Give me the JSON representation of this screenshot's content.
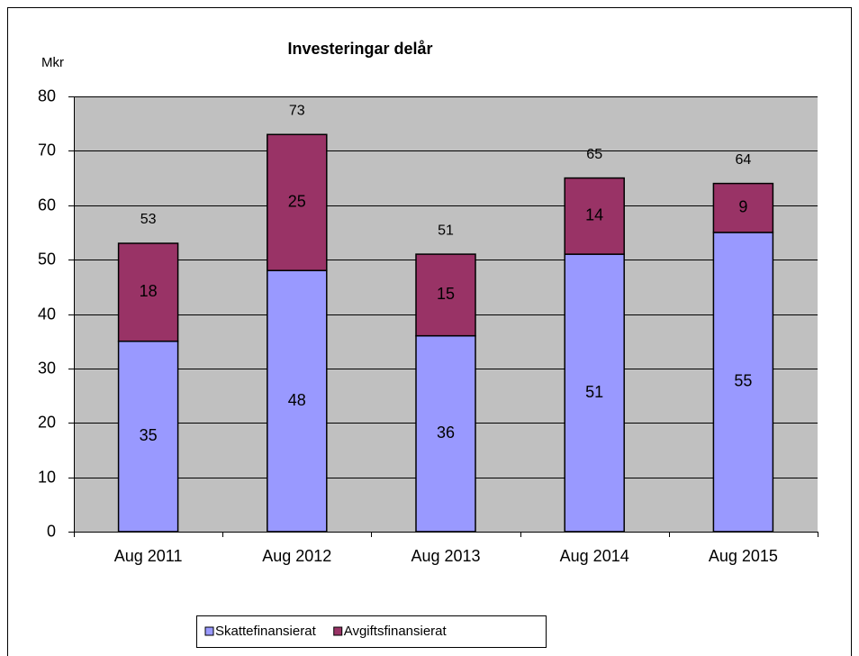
{
  "chart_data": {
    "type": "bar",
    "stacked": true,
    "title": "Investeringar delår",
    "y_label": "Mkr",
    "categories": [
      "Aug 2011",
      "Aug 2012",
      "Aug 2013",
      "Aug 2014",
      "Aug 2015"
    ],
    "series": [
      {
        "name": "Skattefinansierat",
        "color": "#9999ff",
        "values": [
          35,
          48,
          36,
          51,
          55
        ]
      },
      {
        "name": "Avgiftsfinansierat",
        "color": "#993366",
        "values": [
          18,
          25,
          15,
          14,
          9
        ]
      }
    ],
    "totals": [
      53,
      73,
      51,
      65,
      64
    ],
    "ylim": [
      0,
      80
    ],
    "yticks": [
      0,
      10,
      20,
      30,
      40,
      50,
      60,
      70,
      80
    ],
    "grid": true,
    "legend": "bottom",
    "plot_background": "#c0c0c0"
  }
}
